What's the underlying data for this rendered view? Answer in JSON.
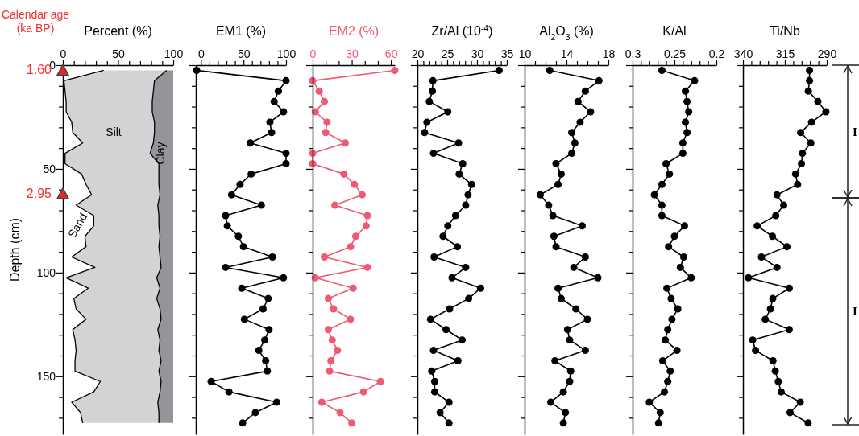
{
  "chart_data": [
    {
      "type": "area",
      "stacked": true,
      "orientation": "horizontal",
      "xlabel": "Percent (%)",
      "ylabel": "Depth (cm)",
      "xlim": [
        0,
        100
      ],
      "xticks": [
        0,
        {
          "value": 10,
          "label": null
        },
        {
          "value": 20,
          "label": null
        },
        {
          "value": 30,
          "label": null
        },
        {
          "value": 40,
          "label": null
        },
        50,
        {
          "value": 60,
          "label": null
        },
        {
          "value": 70,
          "label": null
        },
        {
          "value": 80,
          "label": null
        },
        {
          "value": 90,
          "label": null
        },
        100
      ],
      "ylim": [
        178,
        0
      ],
      "yticks": [
        0,
        {
          "value": 10,
          "label": null
        },
        {
          "value": 20,
          "label": null
        },
        {
          "value": 30,
          "label": null
        },
        {
          "value": 40,
          "label": null
        },
        50,
        {
          "value": 60,
          "label": null
        },
        {
          "value": 70,
          "label": null
        },
        {
          "value": 80,
          "label": null
        },
        {
          "value": 90,
          "label": null
        },
        100,
        {
          "value": 110,
          "label": null
        },
        {
          "value": 120,
          "label": null
        },
        {
          "value": 130,
          "label": null
        },
        {
          "value": 140,
          "label": null
        },
        150,
        {
          "value": 160,
          "label": null
        },
        {
          "value": 170,
          "label": null
        }
      ],
      "x": [
        2.5,
        7.5,
        12.5,
        17.5,
        22.5,
        27.5,
        32.5,
        37.5,
        42.5,
        47.5,
        52.5,
        57.5,
        62.5,
        67.5,
        72.5,
        77.5,
        82.5,
        87.5,
        92.5,
        97.5,
        102.5,
        107.5,
        112.5,
        117.5,
        122.5,
        127.5,
        132.5,
        137.5,
        142.5,
        147.5,
        152.5,
        157.5,
        162.5,
        167.5,
        172.5
      ],
      "series": [
        {
          "name": "Sand",
          "color": "#ffffff",
          "values": [
            37,
            1,
            2,
            3,
            3,
            8,
            9,
            18,
            2,
            2,
            17,
            21,
            26,
            12,
            28,
            28,
            20,
            21,
            8,
            29,
            3,
            23,
            10,
            12,
            21,
            9,
            11,
            12,
            11,
            11,
            34,
            28,
            8,
            16,
            18
          ]
        },
        {
          "name": "Silt",
          "color": "#d1d3d4",
          "values": [
            57,
            82,
            80,
            78,
            78,
            75,
            74,
            64,
            77,
            85,
            70,
            66,
            62,
            74,
            59,
            59,
            68,
            66,
            80,
            60,
            82,
            65,
            75,
            76,
            68,
            77,
            77,
            75,
            78,
            76,
            55,
            60,
            78,
            71,
            69
          ]
        },
        {
          "name": "Clay",
          "color": "#939598",
          "values": [
            6,
            17,
            18,
            19,
            19,
            17,
            17,
            18,
            21,
            13,
            13,
            13,
            12,
            14,
            13,
            13,
            12,
            13,
            12,
            11,
            15,
            12,
            15,
            12,
            11,
            14,
            12,
            13,
            11,
            13,
            11,
            12,
            14,
            13,
            13
          ]
        }
      ],
      "annotations": [
        "Calendar age\n(ka BP)",
        {
          "text": "1.60",
          "x": 0,
          "y": 2.5
        },
        {
          "text": "2.95",
          "x": 0,
          "y": 62
        }
      ]
    },
    {
      "type": "line",
      "orientation": "horizontal",
      "marker": "circle",
      "tick_labels": "x",
      "xlabel": "EM1 (%)",
      "xlim": [
        -6,
        100
      ],
      "xticks": [
        0,
        {
          "value": 10,
          "label": null
        },
        {
          "value": 20,
          "label": null
        },
        {
          "value": 30,
          "label": null
        },
        {
          "value": 40,
          "label": null
        },
        50,
        {
          "value": 60,
          "label": null
        },
        {
          "value": 70,
          "label": null
        },
        {
          "value": 80,
          "label": null
        },
        {
          "value": 90,
          "label": null
        },
        100
      ],
      "ylim": [
        178,
        0
      ],
      "yticks": [
        0,
        10,
        20,
        30,
        40,
        50,
        60,
        70,
        80,
        90,
        100,
        110,
        120,
        130,
        140,
        150,
        160,
        170
      ],
      "x": [
        2.5,
        7.5,
        12.5,
        17.5,
        22.5,
        27.5,
        32.5,
        37.5,
        42.5,
        47.5,
        52.5,
        57.5,
        62.5,
        67.5,
        72.5,
        77.5,
        82.5,
        87.5,
        92.5,
        97.5,
        102.5,
        107.5,
        112.5,
        117.5,
        122.5,
        127.5,
        132.5,
        137.5,
        142.5,
        147.5,
        152.5,
        157.5,
        162.5,
        167.5,
        172.5
      ],
      "series": [
        {
          "color": "#000000",
          "values": [
            -5,
            100,
            91,
            86,
            97,
            81,
            83,
            58,
            100,
            100,
            59,
            46,
            36,
            71,
            29,
            31,
            44,
            50,
            84,
            29,
            97,
            48,
            79,
            73,
            51,
            80,
            75,
            68,
            76,
            78,
            12,
            33,
            89,
            64,
            49
          ]
        }
      ]
    },
    {
      "type": "line",
      "orientation": "horizontal",
      "marker": "circle",
      "tick_labels": "x",
      "xlabel": "EM2 (%)",
      "xlim": [
        0,
        63
      ],
      "xticks": [
        0,
        {
          "value": 10,
          "label": null
        },
        {
          "value": 20,
          "label": null
        },
        30,
        {
          "value": 40,
          "label": null
        },
        {
          "value": 50,
          "label": null
        },
        60
      ],
      "ylim": [
        178,
        0
      ],
      "yticks": [
        0,
        10,
        20,
        30,
        40,
        50,
        60,
        70,
        80,
        90,
        100,
        110,
        120,
        130,
        140,
        150,
        160,
        170
      ],
      "x": [
        2.5,
        7.5,
        12.5,
        17.5,
        22.5,
        27.5,
        32.5,
        37.5,
        42.5,
        47.5,
        52.5,
        57.5,
        62.5,
        67.5,
        72.5,
        77.5,
        82.5,
        87.5,
        92.5,
        97.5,
        102.5,
        107.5,
        112.5,
        117.5,
        122.5,
        127.5,
        132.5,
        137.5,
        142.5,
        147.5,
        152.5,
        157.5,
        162.5,
        167.5,
        172.5
      ],
      "series": [
        {
          "color": "#ef5a72",
          "values": [
            63,
            0,
            5,
            9,
            2,
            11,
            10,
            25,
            0,
            0,
            24,
            32,
            38,
            17,
            42,
            41,
            33,
            29,
            9,
            42,
            2,
            31,
            12,
            16,
            29,
            12,
            15,
            19,
            14,
            13,
            52,
            39,
            7,
            21,
            30
          ]
        }
      ]
    },
    {
      "type": "line",
      "orientation": "horizontal",
      "marker": "circle",
      "tick_labels": "x",
      "xlabel": "Zr/Al (10$^{-4}$)",
      "xlim": [
        20,
        35
      ],
      "xticks": [
        20,
        {
          "value": 21,
          "label": null
        },
        {
          "value": 22,
          "label": null
        },
        {
          "value": 23,
          "label": null
        },
        {
          "value": 24,
          "label": null
        },
        25,
        {
          "value": 26,
          "label": null
        },
        {
          "value": 27,
          "label": null
        },
        {
          "value": 28,
          "label": null
        },
        {
          "value": 29,
          "label": null
        },
        30,
        {
          "value": 31,
          "label": null
        },
        {
          "value": 32,
          "label": null
        },
        {
          "value": 33,
          "label": null
        },
        {
          "value": 34,
          "label": null
        },
        35
      ],
      "ylim": [
        178,
        0
      ],
      "yticks": [
        0,
        10,
        20,
        30,
        40,
        50,
        60,
        70,
        80,
        90,
        100,
        110,
        120,
        130,
        140,
        150,
        160,
        170
      ],
      "x": [
        2.5,
        7.5,
        12.5,
        17.5,
        22.5,
        27.5,
        32.5,
        37.5,
        42.5,
        47.5,
        52.5,
        57.5,
        62.5,
        67.5,
        72.5,
        77.5,
        82.5,
        87.5,
        92.5,
        97.5,
        102.5,
        107.5,
        112.5,
        117.5,
        122.5,
        127.5,
        132.5,
        137.5,
        142.5,
        147.5,
        152.5,
        157.5,
        162.5,
        167.5,
        172.5
      ],
      "series": [
        {
          "color": "#000000",
          "values": [
            33.7,
            22.6,
            22.5,
            22,
            25.1,
            21.6,
            21.2,
            26.9,
            22.7,
            27.6,
            27,
            29.1,
            28.5,
            28.1,
            26.4,
            25.1,
            24.3,
            26.7,
            22.8,
            28.1,
            25.8,
            30.6,
            28.6,
            25.4,
            22.2,
            24.8,
            27.5,
            22.7,
            26.8,
            22.4,
            22.9,
            22.9,
            25.3,
            23.8,
            25.3
          ]
        }
      ]
    },
    {
      "type": "line",
      "orientation": "horizontal",
      "marker": "circle",
      "tick_labels": "x",
      "xlabel": "Al$_{2}$O$_{3}$ (%)",
      "xlim": [
        10,
        18
      ],
      "xticks": [
        10,
        {
          "value": 11,
          "label": null
        },
        {
          "value": 12,
          "label": null
        },
        {
          "value": 13,
          "label": null
        },
        14,
        {
          "value": 15,
          "label": null
        },
        {
          "value": 16,
          "label": null
        },
        {
          "value": 17,
          "label": null
        },
        18
      ],
      "ylim": [
        178,
        0
      ],
      "yticks": [
        0,
        10,
        20,
        30,
        40,
        50,
        60,
        70,
        80,
        90,
        100,
        110,
        120,
        130,
        140,
        150,
        160,
        170
      ],
      "x": [
        2.5,
        7.5,
        12.5,
        17.5,
        22.5,
        27.5,
        32.5,
        37.5,
        42.5,
        47.5,
        52.5,
        57.5,
        62.5,
        67.5,
        72.5,
        77.5,
        82.5,
        87.5,
        92.5,
        97.5,
        102.5,
        107.5,
        112.5,
        117.5,
        122.5,
        127.5,
        132.5,
        137.5,
        142.5,
        147.5,
        152.5,
        157.5,
        162.5,
        167.5,
        172.5
      ],
      "series": [
        {
          "color": "#000000",
          "values": [
            12.4,
            17.1,
            15.8,
            15.1,
            16.3,
            15.3,
            14.5,
            14.8,
            14.5,
            13,
            13.5,
            13.2,
            11.5,
            12.3,
            12.7,
            15.5,
            12.8,
            13,
            15.8,
            14.7,
            17,
            13.2,
            13.5,
            14.9,
            16,
            14.1,
            14.3,
            15.8,
            12.9,
            14.4,
            14.3,
            13.7,
            12.5,
            13.9,
            13.7
          ]
        }
      ]
    },
    {
      "type": "line",
      "orientation": "horizontal",
      "marker": "circle",
      "tick_labels": "x",
      "xlabel": "K/Al",
      "xlim": [
        0.3,
        0.2
      ],
      "xticks": [
        0.3,
        {
          "value": 0.29,
          "label": null
        },
        {
          "value": 0.28,
          "label": null
        },
        {
          "value": 0.27,
          "label": null
        },
        {
          "value": 0.26,
          "label": null
        },
        0.25,
        {
          "value": 0.24,
          "label": null
        },
        {
          "value": 0.23,
          "label": null
        },
        {
          "value": 0.22,
          "label": null
        },
        {
          "value": 0.21,
          "label": null
        },
        0.2
      ],
      "ylim": [
        178,
        0
      ],
      "yticks": [
        0,
        10,
        20,
        30,
        40,
        50,
        60,
        70,
        80,
        90,
        100,
        110,
        120,
        130,
        140,
        150,
        160,
        170
      ],
      "x": [
        2.5,
        7.5,
        12.5,
        17.5,
        22.5,
        27.5,
        32.5,
        37.5,
        42.5,
        47.5,
        52.5,
        57.5,
        62.5,
        67.5,
        72.5,
        77.5,
        82.5,
        87.5,
        92.5,
        97.5,
        102.5,
        107.5,
        112.5,
        117.5,
        122.5,
        127.5,
        132.5,
        137.5,
        142.5,
        147.5,
        152.5,
        157.5,
        162.5,
        167.5,
        172.5
      ],
      "series": [
        {
          "color": "#000000",
          "values": [
            0.265,
            0.226,
            0.237,
            0.235,
            0.233,
            0.237,
            0.235,
            0.24,
            0.24,
            0.26,
            0.256,
            0.265,
            0.274,
            0.265,
            0.265,
            0.238,
            0.25,
            0.257,
            0.239,
            0.243,
            0.23,
            0.259,
            0.254,
            0.246,
            0.253,
            0.258,
            0.261,
            0.247,
            0.264,
            0.255,
            0.258,
            0.262,
            0.28,
            0.267,
            0.269
          ]
        }
      ]
    },
    {
      "type": "line",
      "orientation": "horizontal",
      "marker": "circle",
      "tick_labels": "x",
      "xlabel": "Ti/Nb",
      "xlim": [
        340,
        290
      ],
      "xticks": [
        340,
        {
          "value": 335,
          "label": null
        },
        {
          "value": 330,
          "label": null
        },
        {
          "value": 325,
          "label": null
        },
        {
          "value": 320,
          "label": null
        },
        315,
        {
          "value": 310,
          "label": null
        },
        {
          "value": 305,
          "label": null
        },
        {
          "value": 300,
          "label": null
        },
        {
          "value": 295,
          "label": null
        },
        290
      ],
      "ylim": [
        178,
        0
      ],
      "yticks": [
        0,
        10,
        20,
        30,
        40,
        50,
        60,
        70,
        80,
        90,
        100,
        110,
        120,
        130,
        140,
        150,
        160,
        170
      ],
      "x": [
        2.5,
        7.5,
        12.5,
        17.5,
        22.5,
        27.5,
        32.5,
        37.5,
        42.5,
        47.5,
        52.5,
        57.5,
        62.5,
        67.5,
        72.5,
        77.5,
        82.5,
        87.5,
        92.5,
        97.5,
        102.5,
        107.5,
        112.5,
        117.5,
        122.5,
        127.5,
        132.5,
        137.5,
        142.5,
        147.5,
        152.5,
        157.5,
        162.5,
        167.5,
        172.5
      ],
      "series": [
        {
          "color": "#000000",
          "values": [
            300.3,
            300.3,
            301,
            295.3,
            290.5,
            299.1,
            305.6,
            299.5,
            304.5,
            305.1,
            308.6,
            307.4,
            319.7,
            315.7,
            320.4,
            331.5,
            322.4,
            313.8,
            329,
            319.7,
            336.7,
            312.4,
            322.2,
            323.6,
            326.7,
            312.4,
            334.2,
            332.5,
            322.1,
            320.7,
            318.9,
            317.2,
            305.8,
            311.9,
            301.1
          ]
        }
      ],
      "annotations": [
        "I",
        "I"
      ]
    }
  ]
}
